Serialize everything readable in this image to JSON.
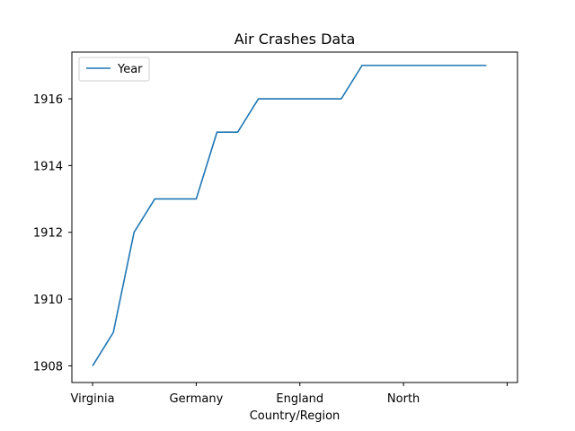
{
  "chart_data": {
    "type": "line",
    "title": "Air Crashes Data",
    "xlabel": "Country/Region",
    "ylabel": "",
    "x": [
      "Virginia",
      "",
      "",
      "",
      "",
      "Germany",
      "",
      "",
      "",
      "",
      "England",
      "",
      "",
      "",
      "",
      "North",
      "",
      "",
      "",
      ""
    ],
    "x_tick_indices": [
      0,
      5,
      10,
      15,
      20
    ],
    "x_tick_labels": [
      "Virginia",
      "Germany",
      "England",
      "North",
      ""
    ],
    "xlim": [
      -1,
      20.5
    ],
    "ylim": [
      1907.5,
      1917.4
    ],
    "yticks": [
      1908,
      1910,
      1912,
      1914,
      1916
    ],
    "legend_position": "upper-left",
    "grid": false,
    "series": [
      {
        "name": "Year",
        "color": "#1f77b4",
        "values": [
          1908,
          1909,
          1912,
          1913,
          1913,
          1913,
          1915,
          1915,
          1916,
          1916,
          1916,
          1916,
          1916,
          1917,
          1917,
          1917,
          1917,
          1917,
          1917,
          1917
        ]
      }
    ]
  }
}
